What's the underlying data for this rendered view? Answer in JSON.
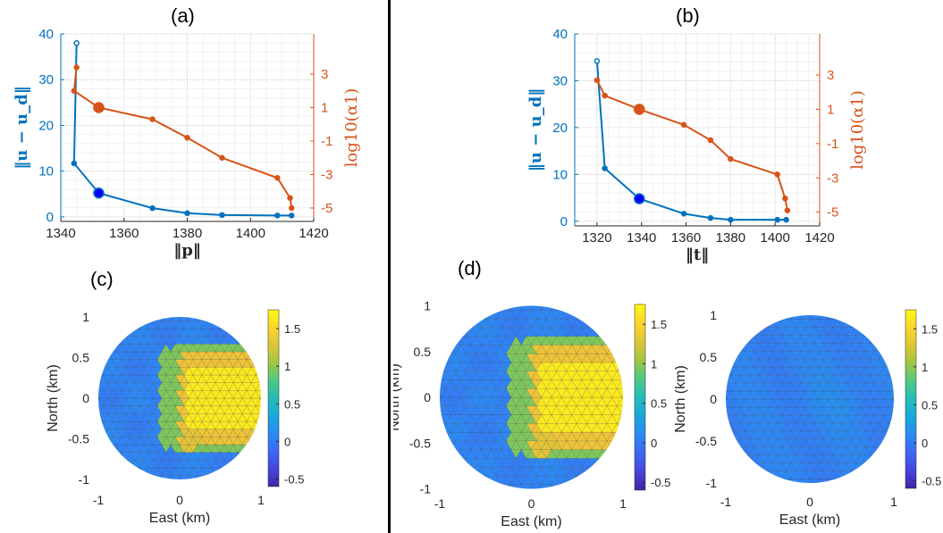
{
  "panel_labels": {
    "a": "(a)",
    "b": "(b)",
    "c": "(c)",
    "d": "(d)"
  },
  "colors": {
    "blue": "#0072BD",
    "orange": "#D95319",
    "grid": "#e6e6e6",
    "axis": "#262626"
  },
  "chart_data": [
    {
      "id": "a",
      "type": "line",
      "xlabel": "‖p‖",
      "ylabel": "‖u − u_d‖",
      "y2label": "log10(α1)",
      "xlim": [
        1340,
        1420
      ],
      "xticks": [
        1340,
        1360,
        1380,
        1400,
        1420
      ],
      "ylim": [
        -1,
        40
      ],
      "yticks": [
        0,
        10,
        20,
        30,
        40
      ],
      "y2lim": [
        -5.8,
        5.4
      ],
      "y2ticks": [
        -5,
        -3,
        -1,
        1,
        3
      ],
      "grid": true,
      "series": [
        {
          "axis": "left",
          "color": "#0072BD",
          "x": [
            1345,
            1344.2,
            1352,
            1369,
            1380,
            1391,
            1408.5,
            1413
          ],
          "y": [
            38,
            11.7,
            5.2,
            1.9,
            0.8,
            0.4,
            0.3,
            0.3
          ],
          "highlight_index": 2
        },
        {
          "axis": "right",
          "color": "#D95319",
          "x": [
            1345,
            1344.2,
            1352,
            1369,
            1380,
            1391,
            1408.5,
            1412.5,
            1413
          ],
          "y": [
            3.4,
            2.0,
            1.0,
            0.3,
            -0.8,
            -2.0,
            -3.2,
            -4.4,
            -5.0
          ],
          "highlight_index": 2
        }
      ]
    },
    {
      "id": "b",
      "type": "line",
      "xlabel": "‖t‖",
      "ylabel": "‖u − u_d‖",
      "y2label": "log10(α1)",
      "xlim": [
        1310,
        1420
      ],
      "xticks": [
        1320,
        1340,
        1360,
        1380,
        1400,
        1420
      ],
      "ylim": [
        -1,
        40
      ],
      "yticks": [
        0,
        10,
        20,
        30,
        40
      ],
      "y2lim": [
        -5.8,
        5.4
      ],
      "y2ticks": [
        -5,
        -3,
        -1,
        1,
        3
      ],
      "grid": true,
      "series": [
        {
          "axis": "left",
          "color": "#0072BD",
          "x": [
            1320,
            1323.5,
            1339,
            1359,
            1371,
            1380,
            1401,
            1405
          ],
          "y": [
            34.2,
            11.3,
            4.8,
            1.6,
            0.7,
            0.3,
            0.3,
            0.3
          ],
          "highlight_index": 2
        },
        {
          "axis": "right",
          "color": "#D95319",
          "x": [
            1320,
            1323.5,
            1339,
            1359,
            1371,
            1380,
            1401,
            1404.5,
            1405.5
          ],
          "y": [
            2.7,
            1.8,
            1.0,
            0.1,
            -0.8,
            -1.9,
            -2.8,
            -4.2,
            -4.9
          ],
          "highlight_index": 2
        }
      ]
    },
    {
      "id": "c",
      "type": "heatmap",
      "xlabel": "East (km)",
      "ylabel": "North (km)",
      "xlim": [
        -1,
        1
      ],
      "xticks": [
        -1,
        0,
        1
      ],
      "ylim": [
        -1,
        1
      ],
      "yticks": [
        -1,
        -0.5,
        0,
        0.5,
        1
      ],
      "clim": [
        -0.6,
        1.75
      ],
      "colorbar_ticks": [
        -0.5,
        0,
        0.5,
        1,
        1.5
      ],
      "field": "concentrated"
    },
    {
      "id": "d1",
      "type": "heatmap",
      "xlabel": "East (km)",
      "ylabel": "North (km)",
      "xlim": [
        -1,
        1
      ],
      "xticks": [
        -1,
        0,
        1
      ],
      "ylim": [
        -1,
        1
      ],
      "yticks": [
        -1,
        -0.5,
        0,
        0.5,
        1
      ],
      "clim": [
        -0.6,
        1.75
      ],
      "colorbar_ticks": [
        -0.5,
        0,
        0.5,
        1,
        1.5
      ],
      "field": "concentrated"
    },
    {
      "id": "d2",
      "type": "heatmap",
      "xlabel": "East (km)",
      "ylabel": "North (km)",
      "xlim": [
        -1,
        1
      ],
      "xticks": [
        -1,
        0,
        1
      ],
      "ylim": [
        -1,
        1
      ],
      "yticks": [
        -1,
        -0.5,
        0,
        0.5,
        1
      ],
      "clim": [
        -0.6,
        1.75
      ],
      "colorbar_ticks": [
        -0.5,
        0,
        0.5,
        1,
        1.5
      ],
      "field": "uniform"
    }
  ]
}
